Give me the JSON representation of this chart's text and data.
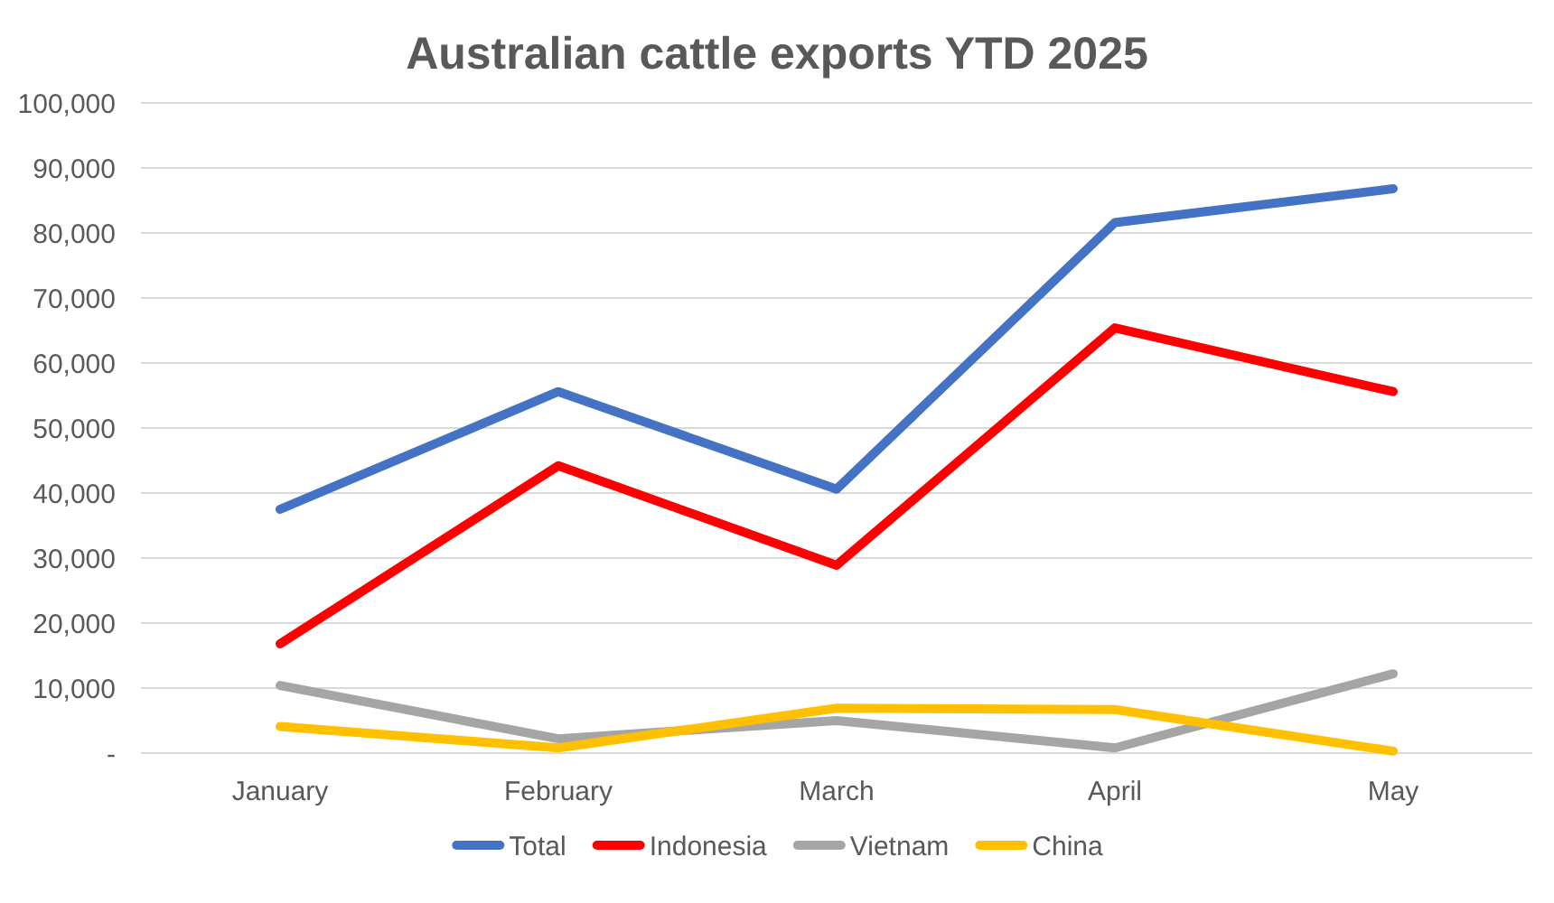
{
  "chart_data": {
    "type": "line",
    "title": "Australian cattle exports YTD 2025",
    "categories": [
      "January",
      "February",
      "March",
      "April",
      "May"
    ],
    "series": [
      {
        "name": "Total",
        "color": "#4472c4",
        "values": [
          37500,
          55600,
          40600,
          81600,
          86800
        ]
      },
      {
        "name": "Indonesia",
        "color": "#ff0000",
        "values": [
          16800,
          44200,
          28900,
          65400,
          55600
        ]
      },
      {
        "name": "Vietnam",
        "color": "#a5a5a5",
        "values": [
          10400,
          2200,
          5000,
          800,
          12200
        ]
      },
      {
        "name": "China",
        "color": "#ffc000",
        "values": [
          4100,
          800,
          6900,
          6700,
          300
        ]
      }
    ],
    "ylim": [
      0,
      100000
    ],
    "yticks": [
      {
        "value": 0,
        "label": "-"
      },
      {
        "value": 10000,
        "label": "10,000"
      },
      {
        "value": 20000,
        "label": "20,000"
      },
      {
        "value": 30000,
        "label": "30,000"
      },
      {
        "value": 40000,
        "label": "40,000"
      },
      {
        "value": 50000,
        "label": "50,000"
      },
      {
        "value": 60000,
        "label": "60,000"
      },
      {
        "value": 70000,
        "label": "70,000"
      },
      {
        "value": 80000,
        "label": "80,000"
      },
      {
        "value": 90000,
        "label": "90,000"
      },
      {
        "value": 100000,
        "label": "100,000"
      }
    ],
    "grid": "y",
    "legend": "bottom"
  }
}
